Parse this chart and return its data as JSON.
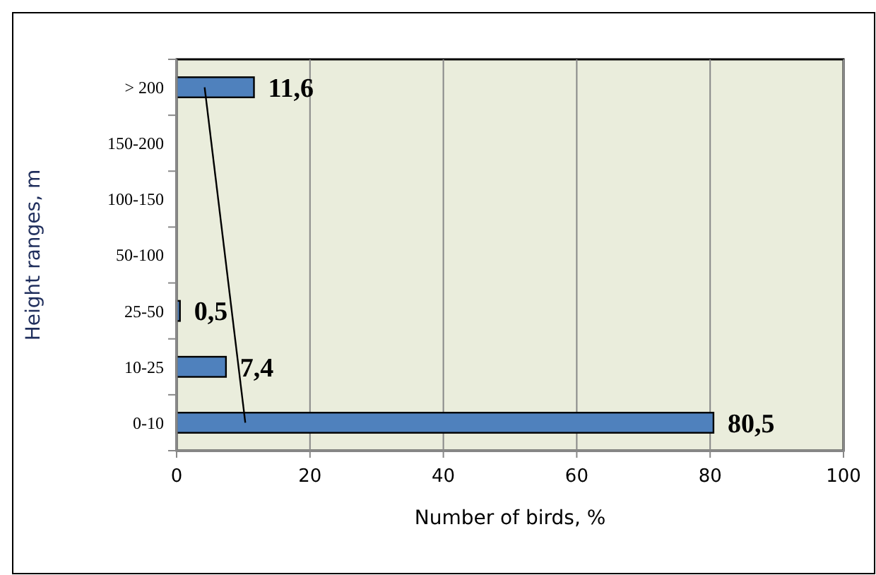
{
  "chart_data": {
    "type": "bar",
    "orientation": "horizontal",
    "xlabel": "Number of birds, %",
    "ylabel": "Height ranges, m",
    "categories": [
      "> 200",
      "150-200",
      "100-150",
      "50-100",
      "25-50",
      "10-25",
      "0-10"
    ],
    "series": [
      {
        "color": "#4f81bd",
        "values": [
          11.6,
          0,
          0,
          0,
          0.5,
          7.4,
          80.5
        ],
        "value_labels": [
          "11,6",
          null,
          null,
          null,
          "0,5",
          "7,4",
          "80,5"
        ]
      },
      {
        "type": "line",
        "color": "#000000",
        "values": [
          4.2,
          null,
          null,
          null,
          null,
          null,
          10.3
        ]
      }
    ],
    "xlim": [
      0,
      100
    ],
    "xticks": [
      0,
      20,
      40,
      60,
      80,
      100
    ],
    "grid": "x"
  }
}
